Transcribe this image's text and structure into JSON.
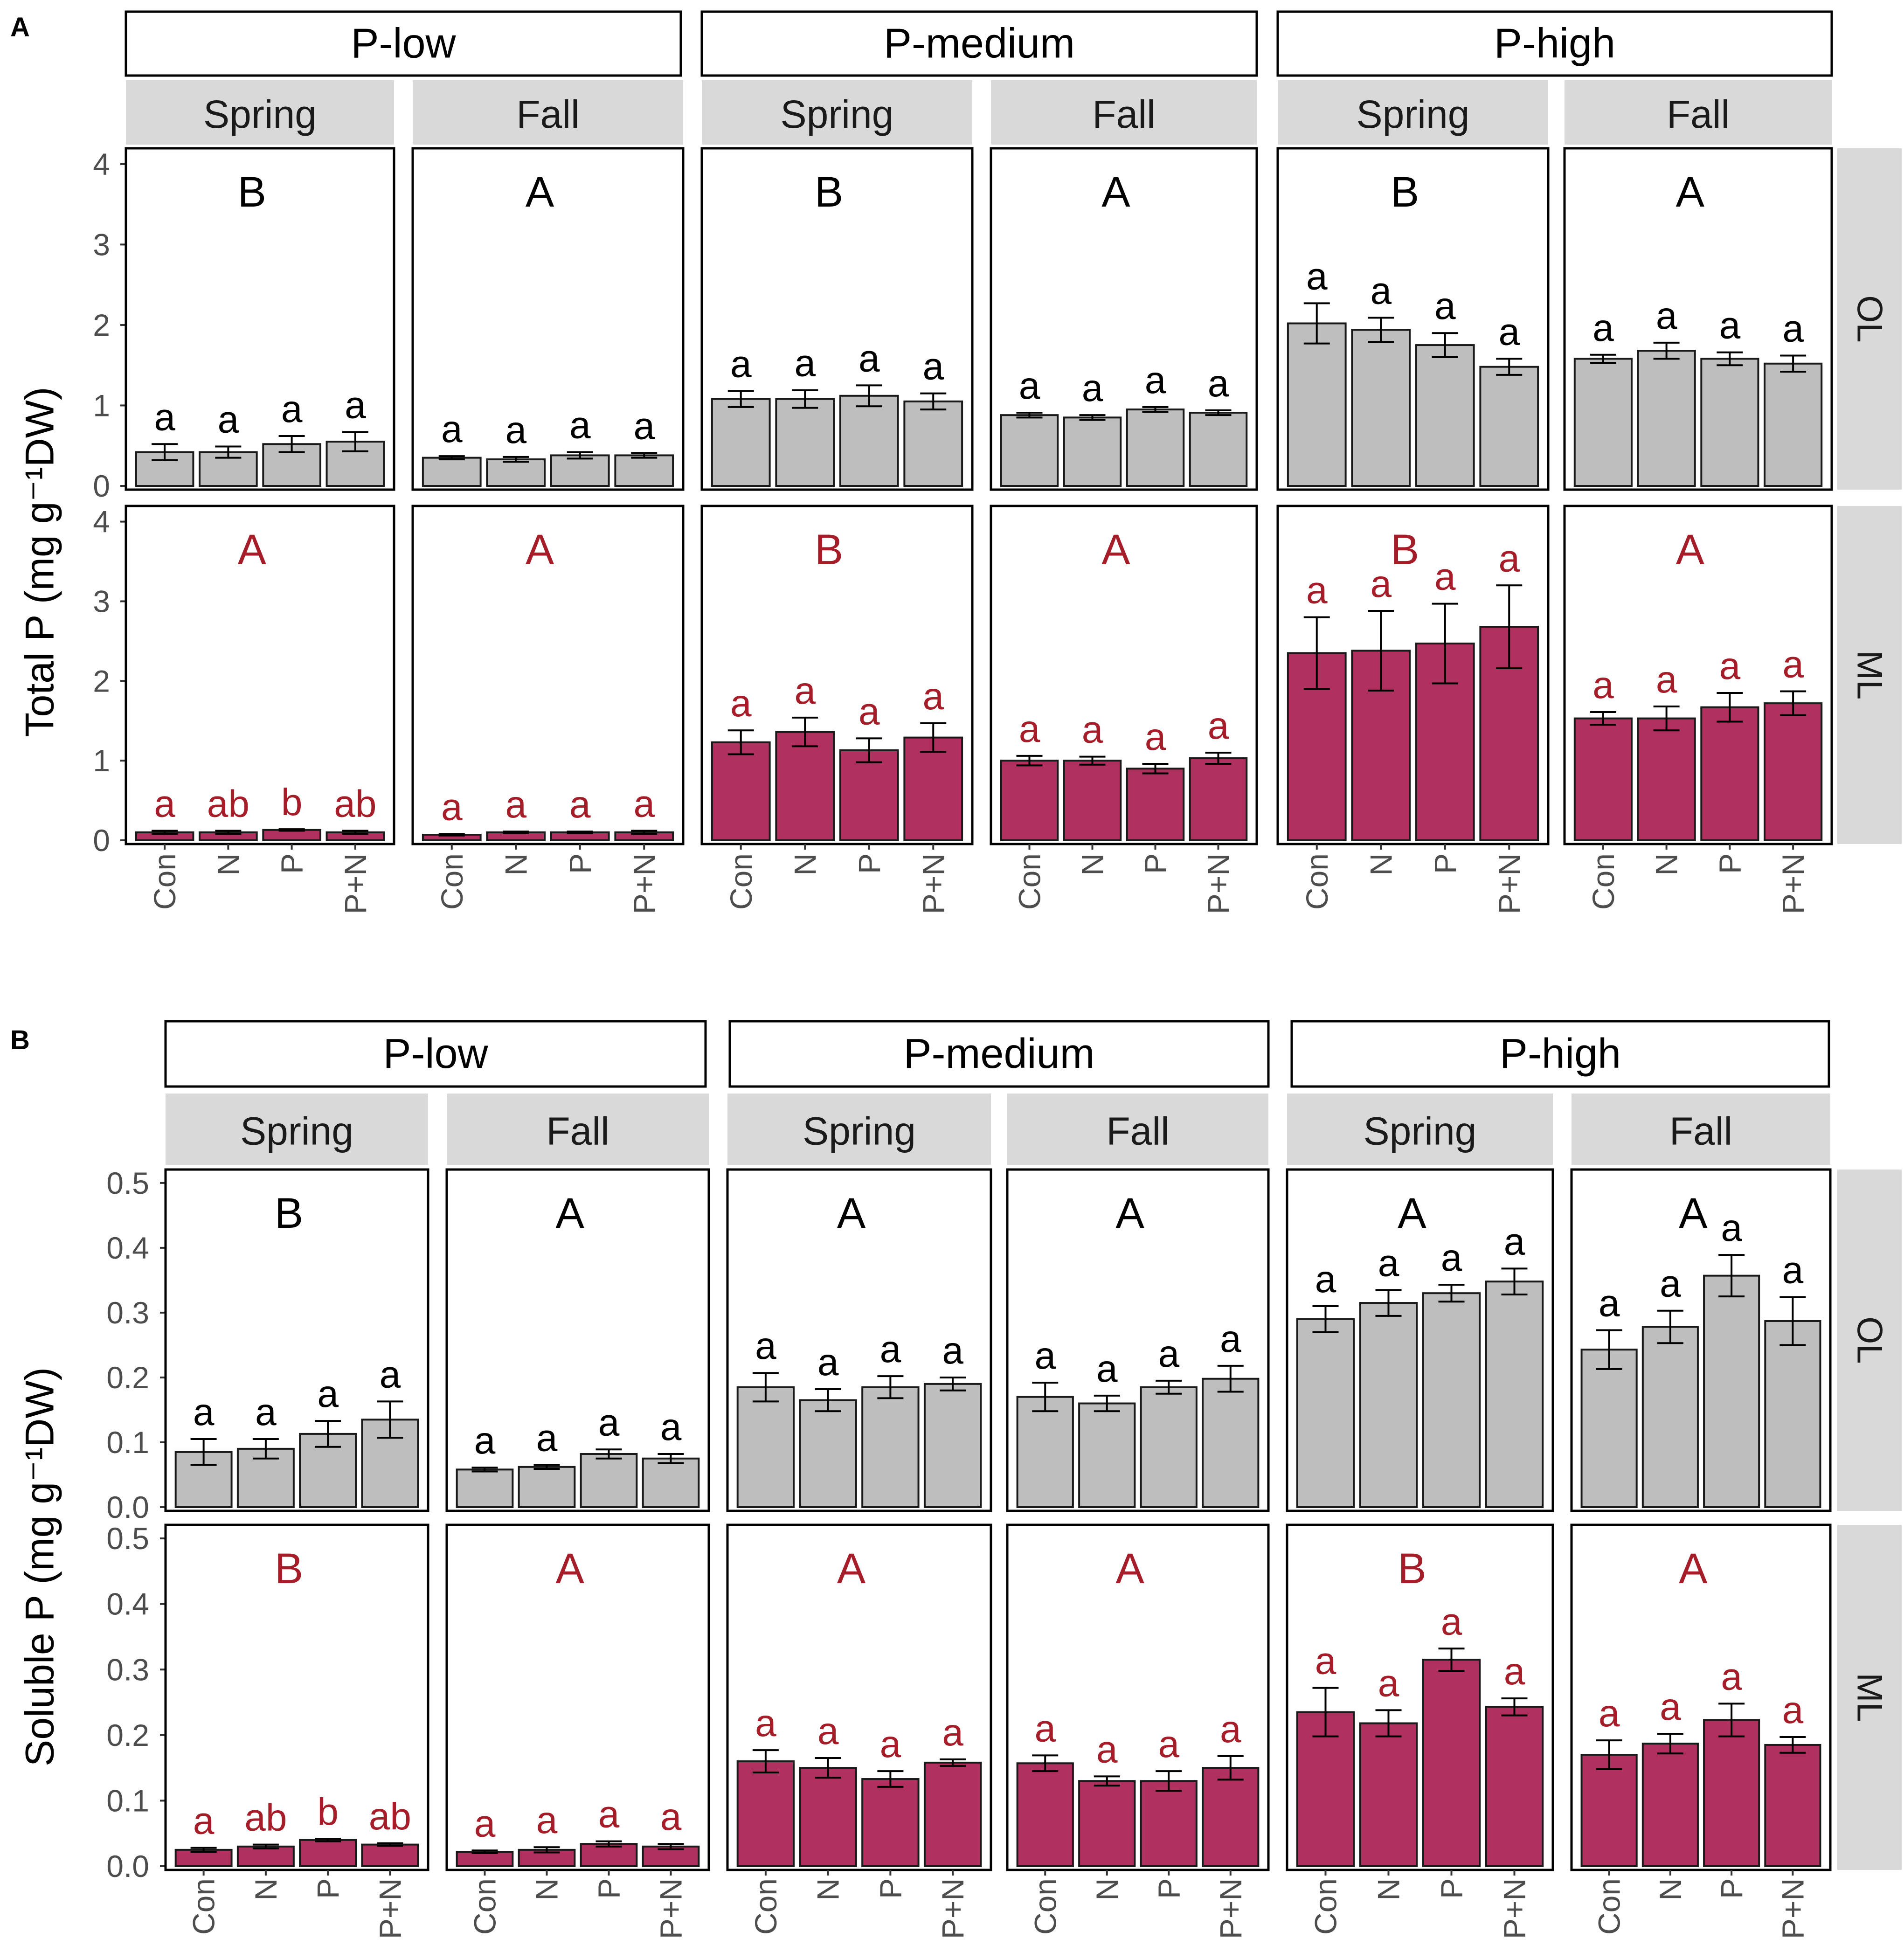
{
  "colors": {
    "OL": "#bebebe",
    "ML": "#b03060",
    "OL_text": "#000000",
    "ML_text": "#a51d29",
    "strip_fill": "#d9d9d9",
    "strip_text": "#1a1a1a",
    "panel_border": "#000000",
    "axis_text": "#4d4d4d"
  },
  "chart_data": [
    {
      "type": "bar",
      "panel_label": "A",
      "ylabel": "Total P (mg g⁻¹DW)",
      "ylim": [
        0,
        4.15
      ],
      "yticks": [
        0,
        1,
        2,
        3,
        4
      ],
      "ytick_labels": [
        "0",
        "1",
        "2",
        "3",
        "4"
      ],
      "categories": [
        "Con",
        "N",
        "P",
        "P+N"
      ],
      "facet_rows": [
        "OL",
        "ML"
      ],
      "groups": [
        {
          "label": "P-low",
          "seasons": [
            {
              "season": "Spring",
              "OL": {
                "values": [
                  0.42,
                  0.42,
                  0.52,
                  0.55
                ],
                "errors": [
                  0.1,
                  0.07,
                  0.1,
                  0.12
                ],
                "letters": [
                  "a",
                  "a",
                  "a",
                  "a"
                ],
                "season_letter": "B"
              },
              "ML": {
                "values": [
                  0.1,
                  0.1,
                  0.13,
                  0.1
                ],
                "errors": [
                  0.02,
                  0.02,
                  0.01,
                  0.02
                ],
                "letters": [
                  "a",
                  "ab",
                  "b",
                  "ab"
                ],
                "season_letter": "A"
              }
            },
            {
              "season": "Fall",
              "OL": {
                "values": [
                  0.35,
                  0.33,
                  0.38,
                  0.38
                ],
                "errors": [
                  0.02,
                  0.03,
                  0.04,
                  0.03
                ],
                "letters": [
                  "a",
                  "a",
                  "a",
                  "a"
                ],
                "season_letter": "A"
              },
              "ML": {
                "values": [
                  0.07,
                  0.1,
                  0.1,
                  0.1
                ],
                "errors": [
                  0.01,
                  0.01,
                  0.01,
                  0.02
                ],
                "letters": [
                  "a",
                  "a",
                  "a",
                  "a"
                ],
                "season_letter": "A"
              }
            }
          ]
        },
        {
          "label": "P-medium",
          "seasons": [
            {
              "season": "Spring",
              "OL": {
                "values": [
                  1.08,
                  1.08,
                  1.12,
                  1.05
                ],
                "errors": [
                  0.1,
                  0.11,
                  0.13,
                  0.1
                ],
                "letters": [
                  "a",
                  "a",
                  "a",
                  "a"
                ],
                "season_letter": "B"
              },
              "ML": {
                "values": [
                  1.23,
                  1.36,
                  1.13,
                  1.29
                ],
                "errors": [
                  0.15,
                  0.18,
                  0.15,
                  0.18
                ],
                "letters": [
                  "a",
                  "a",
                  "a",
                  "a"
                ],
                "season_letter": "B"
              }
            },
            {
              "season": "Fall",
              "OL": {
                "values": [
                  0.88,
                  0.85,
                  0.95,
                  0.91
                ],
                "errors": [
                  0.03,
                  0.03,
                  0.03,
                  0.03
                ],
                "letters": [
                  "a",
                  "a",
                  "a",
                  "a"
                ],
                "season_letter": "A"
              },
              "ML": {
                "values": [
                  1.0,
                  1.0,
                  0.9,
                  1.03
                ],
                "errors": [
                  0.06,
                  0.05,
                  0.06,
                  0.07
                ],
                "letters": [
                  "a",
                  "a",
                  "a",
                  "a"
                ],
                "season_letter": "A"
              }
            }
          ]
        },
        {
          "label": "P-high",
          "seasons": [
            {
              "season": "Spring",
              "OL": {
                "values": [
                  2.02,
                  1.94,
                  1.75,
                  1.48
                ],
                "errors": [
                  0.25,
                  0.15,
                  0.15,
                  0.1
                ],
                "letters": [
                  "a",
                  "a",
                  "a",
                  "a"
                ],
                "season_letter": "B"
              },
              "ML": {
                "values": [
                  2.35,
                  2.38,
                  2.47,
                  2.68
                ],
                "errors": [
                  0.45,
                  0.5,
                  0.5,
                  0.52
                ],
                "letters": [
                  "a",
                  "a",
                  "a",
                  "a"
                ],
                "season_letter": "B"
              }
            },
            {
              "season": "Fall",
              "OL": {
                "values": [
                  1.58,
                  1.68,
                  1.58,
                  1.52
                ],
                "errors": [
                  0.05,
                  0.1,
                  0.08,
                  0.1
                ],
                "letters": [
                  "a",
                  "a",
                  "a",
                  "a"
                ],
                "season_letter": "A"
              },
              "ML": {
                "values": [
                  1.53,
                  1.53,
                  1.67,
                  1.72
                ],
                "errors": [
                  0.08,
                  0.15,
                  0.18,
                  0.15
                ],
                "letters": [
                  "a",
                  "a",
                  "a",
                  "a"
                ],
                "season_letter": "A"
              }
            }
          ]
        }
      ]
    },
    {
      "type": "bar",
      "panel_label": "B",
      "ylabel": "Soluble P (mg g⁻¹DW)",
      "ylim": [
        0,
        0.515
      ],
      "yticks": [
        0,
        0.1,
        0.2,
        0.3,
        0.4,
        0.5
      ],
      "ytick_labels": [
        "0.0",
        "0.1",
        "0.2",
        "0.3",
        "0.4",
        "0.5"
      ],
      "categories": [
        "Con",
        "N",
        "P",
        "P+N"
      ],
      "facet_rows": [
        "OL",
        "ML"
      ],
      "groups": [
        {
          "label": "P-low",
          "seasons": [
            {
              "season": "Spring",
              "OL": {
                "values": [
                  0.085,
                  0.09,
                  0.113,
                  0.135
                ],
                "errors": [
                  0.02,
                  0.015,
                  0.02,
                  0.028
                ],
                "letters": [
                  "a",
                  "a",
                  "a",
                  "a"
                ],
                "season_letter": "B"
              },
              "ML": {
                "values": [
                  0.025,
                  0.03,
                  0.04,
                  0.033
                ],
                "errors": [
                  0.003,
                  0.003,
                  0.002,
                  0.002
                ],
                "letters": [
                  "a",
                  "ab",
                  "b",
                  "ab"
                ],
                "season_letter": "B"
              }
            },
            {
              "season": "Fall",
              "OL": {
                "values": [
                  0.058,
                  0.062,
                  0.082,
                  0.075
                ],
                "errors": [
                  0.003,
                  0.003,
                  0.007,
                  0.007
                ],
                "letters": [
                  "a",
                  "a",
                  "a",
                  "a"
                ],
                "season_letter": "A"
              },
              "ML": {
                "values": [
                  0.022,
                  0.025,
                  0.034,
                  0.03
                ],
                "errors": [
                  0.002,
                  0.004,
                  0.004,
                  0.004
                ],
                "letters": [
                  "a",
                  "a",
                  "a",
                  "a"
                ],
                "season_letter": "A"
              }
            }
          ]
        },
        {
          "label": "P-medium",
          "seasons": [
            {
              "season": "Spring",
              "OL": {
                "values": [
                  0.185,
                  0.165,
                  0.185,
                  0.19
                ],
                "errors": [
                  0.022,
                  0.017,
                  0.017,
                  0.01
                ],
                "letters": [
                  "a",
                  "a",
                  "a",
                  "a"
                ],
                "season_letter": "A"
              },
              "ML": {
                "values": [
                  0.16,
                  0.15,
                  0.133,
                  0.158
                ],
                "errors": [
                  0.017,
                  0.015,
                  0.012,
                  0.005
                ],
                "letters": [
                  "a",
                  "a",
                  "a",
                  "a"
                ],
                "season_letter": "A"
              }
            },
            {
              "season": "Fall",
              "OL": {
                "values": [
                  0.17,
                  0.16,
                  0.185,
                  0.198
                ],
                "errors": [
                  0.022,
                  0.012,
                  0.01,
                  0.02
                ],
                "letters": [
                  "a",
                  "a",
                  "a",
                  "a"
                ],
                "season_letter": "A"
              },
              "ML": {
                "values": [
                  0.157,
                  0.13,
                  0.13,
                  0.15
                ],
                "errors": [
                  0.012,
                  0.007,
                  0.015,
                  0.018
                ],
                "letters": [
                  "a",
                  "a",
                  "a",
                  "a"
                ],
                "season_letter": "A"
              }
            }
          ]
        },
        {
          "label": "P-high",
          "seasons": [
            {
              "season": "Spring",
              "OL": {
                "values": [
                  0.29,
                  0.315,
                  0.33,
                  0.348
                ],
                "errors": [
                  0.02,
                  0.02,
                  0.013,
                  0.02
                ],
                "letters": [
                  "a",
                  "a",
                  "a",
                  "a"
                ],
                "season_letter": "A"
              },
              "ML": {
                "values": [
                  0.235,
                  0.218,
                  0.315,
                  0.243
                ],
                "errors": [
                  0.037,
                  0.02,
                  0.017,
                  0.013
                ],
                "letters": [
                  "a",
                  "a",
                  "a",
                  "a"
                ],
                "season_letter": "B"
              }
            },
            {
              "season": "Fall",
              "OL": {
                "values": [
                  0.243,
                  0.278,
                  0.357,
                  0.287
                ],
                "errors": [
                  0.03,
                  0.025,
                  0.032,
                  0.037
                ],
                "letters": [
                  "a",
                  "a",
                  "a",
                  "a"
                ],
                "season_letter": "A"
              },
              "ML": {
                "values": [
                  0.17,
                  0.187,
                  0.223,
                  0.185
                ],
                "errors": [
                  0.022,
                  0.015,
                  0.025,
                  0.012
                ],
                "letters": [
                  "a",
                  "a",
                  "a",
                  "a"
                ],
                "season_letter": "A"
              }
            }
          ]
        }
      ]
    }
  ]
}
